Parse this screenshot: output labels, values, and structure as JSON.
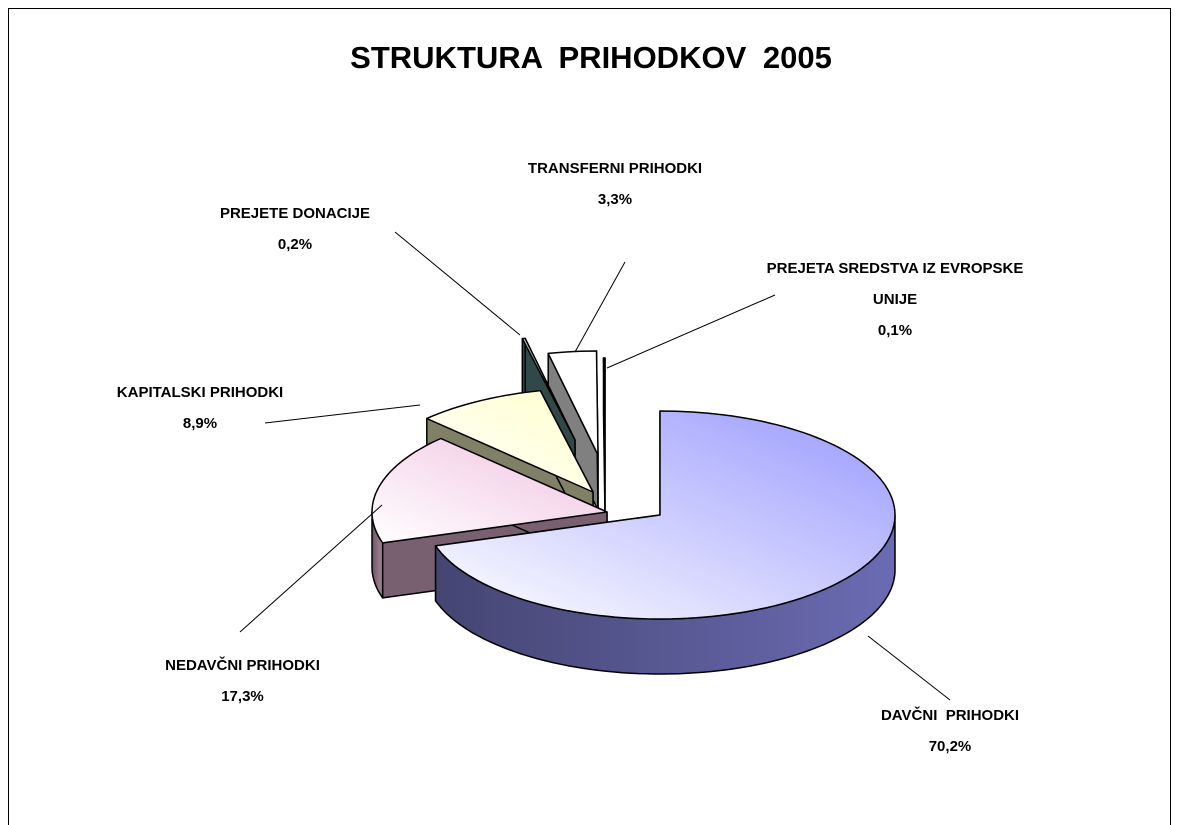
{
  "chart_data": {
    "type": "pie",
    "title": "STRUKTURA  PRIHODKOV  2005",
    "categories": [
      "DAVČNI  PRIHODKI",
      "NEDAVČNI PRIHODKI",
      "KAPITALSKI PRIHODKI",
      "PREJETE DONACIJE",
      "TRANSFERNI PRIHODKI",
      "PREJETA SREDSTVA IZ EVROPSKE UNIJE"
    ],
    "values": [
      70.2,
      17.3,
      8.9,
      0.2,
      3.3,
      0.1
    ],
    "value_labels": [
      "70,2%",
      "17,3%",
      "8,9%",
      "0,2%",
      "3,3%",
      "0,1%"
    ],
    "colors": [
      "#9999ff",
      "#f0c0e0",
      "#ffffcc",
      "#5f8f8f",
      "#ffffff",
      "#ffffff"
    ]
  }
}
